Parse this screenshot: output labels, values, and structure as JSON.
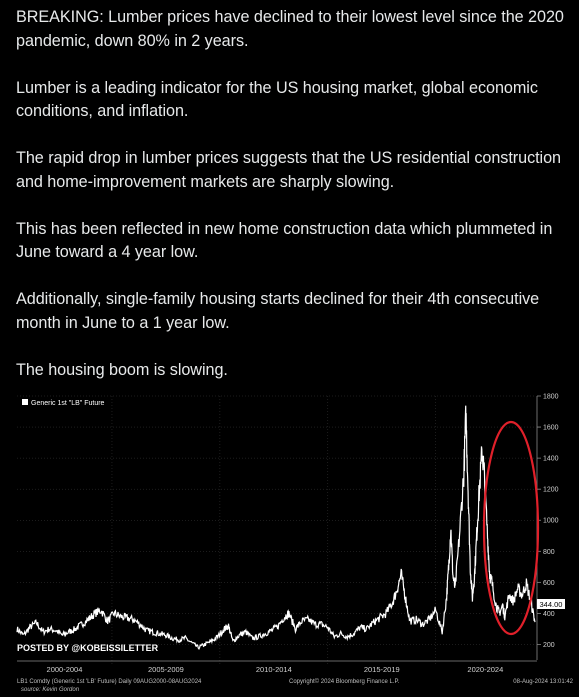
{
  "tweet": {
    "paragraphs": [
      "BREAKING: Lumber prices have declined to their lowest level since the 2020 pandemic, down 80% in 2 years.",
      "Lumber is a leading indicator for the US housing market, global economic conditions, and inflation.",
      "The rapid drop in lumber prices suggests that the US residential construction and home-improvement markets are sharply slowing.",
      "This has been reflected in new home construction data which plummeted in June toward a 4 year low.",
      "Additionally, single-family housing starts declined for their 4th consecutive month in June to a 1 year low.",
      "The housing boom is slowing."
    ]
  },
  "chart": {
    "legend": "Generic 1st \"LB\" Future",
    "watermark": "POSTED BY @KOBEISSILETTER",
    "footer_left": "LB1 Comdty (Generic 1st 'LB' Future)  Daily 09AUG2000-08AUG2024",
    "footer_center": "Copyright© 2024 Bloomberg Finance L.P.",
    "footer_right": "08-Aug-2024 13:01:42",
    "source": "source: Kevin Gordon",
    "last_value_label": "344.00",
    "colors": {
      "line": "#ffffff",
      "grid": "#3a3a3a",
      "highlight_ellipse": "#e0202a",
      "last_value_box": "#ffffff"
    }
  },
  "chart_data": {
    "type": "line",
    "legend": "Generic 1st \"LB\" Future",
    "x_tick_labels": [
      "2000-2004",
      "2005-2009",
      "2010-2014",
      "2015-2019",
      "2020-2024"
    ],
    "y_ticks": [
      200,
      400,
      600,
      800,
      1000,
      1200,
      1400,
      1600,
      1800
    ],
    "ylim": [
      100,
      1800
    ],
    "xlim": [
      2000.6,
      2024.6
    ],
    "last_value": 344,
    "series": [
      {
        "points": [
          [
            2000.6,
            300
          ],
          [
            2000.9,
            260
          ],
          [
            2001.2,
            310
          ],
          [
            2001.5,
            340
          ],
          [
            2001.8,
            280
          ],
          [
            2002.1,
            300
          ],
          [
            2002.4,
            290
          ],
          [
            2002.7,
            260
          ],
          [
            2003.0,
            280
          ],
          [
            2003.3,
            300
          ],
          [
            2003.6,
            330
          ],
          [
            2003.9,
            360
          ],
          [
            2004.2,
            400
          ],
          [
            2004.5,
            420
          ],
          [
            2004.8,
            350
          ],
          [
            2005.1,
            400
          ],
          [
            2005.4,
            380
          ],
          [
            2005.7,
            370
          ],
          [
            2006.0,
            360
          ],
          [
            2006.3,
            330
          ],
          [
            2006.6,
            290
          ],
          [
            2006.9,
            280
          ],
          [
            2007.2,
            270
          ],
          [
            2007.5,
            260
          ],
          [
            2007.8,
            240
          ],
          [
            2008.1,
            230
          ],
          [
            2008.4,
            240
          ],
          [
            2008.7,
            210
          ],
          [
            2009.0,
            180
          ],
          [
            2009.3,
            200
          ],
          [
            2009.6,
            220
          ],
          [
            2009.9,
            250
          ],
          [
            2010.2,
            300
          ],
          [
            2010.4,
            320
          ],
          [
            2010.6,
            220
          ],
          [
            2010.9,
            260
          ],
          [
            2011.2,
            280
          ],
          [
            2011.5,
            240
          ],
          [
            2011.8,
            250
          ],
          [
            2012.1,
            270
          ],
          [
            2012.4,
            290
          ],
          [
            2012.7,
            320
          ],
          [
            2013.0,
            380
          ],
          [
            2013.2,
            400
          ],
          [
            2013.5,
            300
          ],
          [
            2013.8,
            350
          ],
          [
            2014.1,
            360
          ],
          [
            2014.4,
            330
          ],
          [
            2014.7,
            330
          ],
          [
            2015.0,
            310
          ],
          [
            2015.3,
            250
          ],
          [
            2015.6,
            270
          ],
          [
            2015.9,
            250
          ],
          [
            2016.2,
            270
          ],
          [
            2016.5,
            310
          ],
          [
            2016.8,
            300
          ],
          [
            2017.1,
            340
          ],
          [
            2017.4,
            370
          ],
          [
            2017.7,
            400
          ],
          [
            2018.0,
            470
          ],
          [
            2018.2,
            550
          ],
          [
            2018.4,
            650
          ],
          [
            2018.6,
            500
          ],
          [
            2018.8,
            350
          ],
          [
            2019.1,
            360
          ],
          [
            2019.4,
            330
          ],
          [
            2019.7,
            360
          ],
          [
            2020.0,
            420
          ],
          [
            2020.3,
            280
          ],
          [
            2020.5,
            500
          ],
          [
            2020.6,
            700
          ],
          [
            2020.7,
            950
          ],
          [
            2020.8,
            640
          ],
          [
            2020.9,
            560
          ],
          [
            2021.1,
            900
          ],
          [
            2021.3,
            1300
          ],
          [
            2021.4,
            1680
          ],
          [
            2021.5,
            1200
          ],
          [
            2021.6,
            700
          ],
          [
            2021.7,
            500
          ],
          [
            2021.8,
            650
          ],
          [
            2021.9,
            900
          ],
          [
            2022.0,
            1150
          ],
          [
            2022.15,
            1450
          ],
          [
            2022.25,
            1300
          ],
          [
            2022.4,
            900
          ],
          [
            2022.5,
            650
          ],
          [
            2022.6,
            600
          ],
          [
            2022.8,
            450
          ],
          [
            2022.95,
            400
          ],
          [
            2023.1,
            450
          ],
          [
            2023.2,
            380
          ],
          [
            2023.4,
            520
          ],
          [
            2023.6,
            480
          ],
          [
            2023.8,
            560
          ],
          [
            2024.0,
            520
          ],
          [
            2024.2,
            590
          ],
          [
            2024.4,
            480
          ],
          [
            2024.6,
            344
          ]
        ]
      }
    ]
  }
}
